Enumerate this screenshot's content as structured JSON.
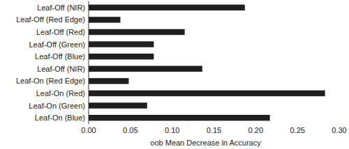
{
  "chart_data": {
    "type": "bar",
    "orientation": "horizontal",
    "x_label": "oob Mean Decrease in Accuracy",
    "categories": [
      "Leaf-Off (NIR)",
      "Leaf-Off (Red Edge)",
      "Leaf-Off (Red)",
      "Leaf-Off (Green)",
      "Leaf-Off (Blue)",
      "Leaf-Off (NIR)",
      "Leaf-On (Red Edge)",
      "Leaf-On (Red)",
      "Leaf-On (Green)",
      "Leaf-On (Blue)"
    ],
    "values": [
      0.187,
      0.038,
      0.115,
      0.078,
      0.078,
      0.136,
      0.048,
      0.283,
      0.07,
      0.217
    ],
    "color": "#1f1f1f",
    "xlim": [
      0,
      0.3
    ],
    "xticks": [
      {
        "value": 0,
        "label": "0.00"
      },
      {
        "value": 0.05,
        "label": "0.05"
      },
      {
        "value": 0.1,
        "label": "0.10"
      },
      {
        "value": 0.15,
        "label": "0.15"
      },
      {
        "value": 0.2,
        "label": "0.20"
      },
      {
        "value": 0.25,
        "label": "0.25"
      },
      {
        "value": 0.3,
        "label": "0.30"
      }
    ],
    "grid": false
  }
}
